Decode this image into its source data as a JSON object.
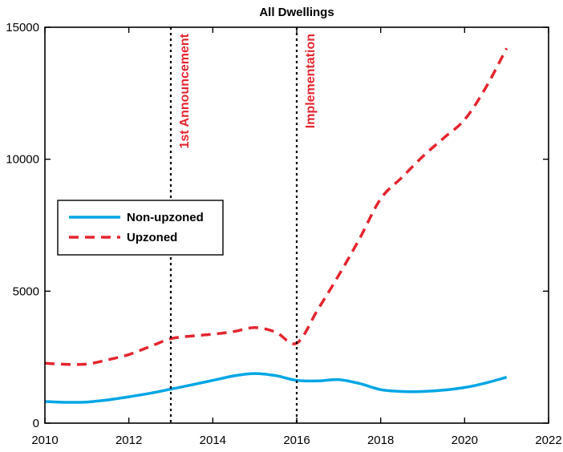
{
  "chart_data": {
    "type": "line",
    "title": "All Dwellings",
    "xlabel": "",
    "ylabel": "",
    "xlim": [
      2010,
      2022
    ],
    "ylim": [
      0,
      15000
    ],
    "xticks": [
      "2010",
      "2012",
      "2014",
      "2016",
      "2018",
      "2020",
      "2022"
    ],
    "yticks": [
      "0",
      "5000",
      "10000",
      "15000"
    ],
    "grid": false,
    "legend_position": "middle-left",
    "series": [
      {
        "name": "Non-upzoned",
        "color": "#00a6e4",
        "style": "solid",
        "x": [
          2010,
          2010.5,
          2011,
          2011.5,
          2012,
          2012.5,
          2013,
          2013.5,
          2014,
          2014.5,
          2015,
          2015.5,
          2016,
          2016.5,
          2017,
          2017.5,
          2018,
          2018.5,
          2019,
          2019.5,
          2020,
          2020.5,
          2021
        ],
        "values": [
          820,
          790,
          800,
          880,
          1000,
          1130,
          1290,
          1450,
          1620,
          1790,
          1880,
          1800,
          1620,
          1600,
          1650,
          1500,
          1270,
          1200,
          1200,
          1250,
          1350,
          1520,
          1740
        ]
      },
      {
        "name": "Upzoned",
        "color": "#e4252f",
        "style": "dashed",
        "x": [
          2010,
          2010.5,
          2011,
          2011.5,
          2012,
          2012.5,
          2013,
          2013.5,
          2014,
          2014.5,
          2015,
          2015.5,
          2016,
          2016.5,
          2017,
          2017.5,
          2018,
          2018.5,
          2019,
          2019.5,
          2020,
          2020.5,
          2021
        ],
        "values": [
          2270,
          2230,
          2240,
          2400,
          2600,
          2900,
          3200,
          3300,
          3370,
          3470,
          3620,
          3450,
          3030,
          4300,
          5600,
          7000,
          8500,
          9300,
          10100,
          10800,
          11500,
          12700,
          14200
        ]
      }
    ],
    "vlines": [
      {
        "x": 2013,
        "label": "1st Announcement"
      },
      {
        "x": 2016,
        "label": "Implementation"
      }
    ]
  }
}
